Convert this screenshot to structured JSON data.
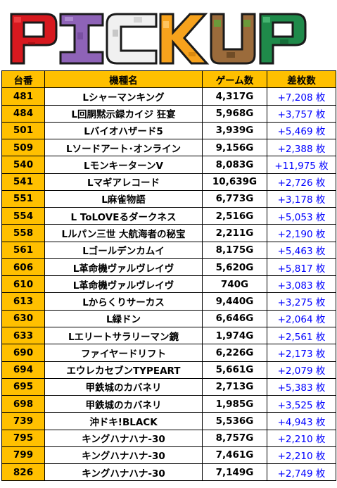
{
  "banner": {
    "title": "PICKUP",
    "letters": [
      {
        "char": "P",
        "color": "#d7191f"
      },
      {
        "char": "I",
        "color": "#8e63b7"
      },
      {
        "char": "C",
        "color": "#f0f0f0"
      },
      {
        "char": "K",
        "color": "#f7a21c"
      },
      {
        "char": "U",
        "color": "#9b6b3b"
      },
      {
        "char": "P",
        "color": "#1f8a4a"
      }
    ]
  },
  "table": {
    "headers": {
      "no": "台番",
      "model": "機種名",
      "games": "ゲーム数",
      "diff": "差枚数"
    },
    "header_color": "#ffc000",
    "diff_color": "#0000ff",
    "rows": [
      {
        "no": "481",
        "model": "Lシャーマンキング",
        "games": "4,317G",
        "diff": "+7,208 枚"
      },
      {
        "no": "484",
        "model": "L回胴黙示録カイジ 狂宴",
        "games": "5,968G",
        "diff": "+3,757 枚"
      },
      {
        "no": "501",
        "model": "Lバイオハザード5",
        "games": "3,939G",
        "diff": "+5,469 枚"
      },
      {
        "no": "509",
        "model": "Lソードアート･オンライン",
        "games": "9,156G",
        "diff": "+2,388 枚"
      },
      {
        "no": "540",
        "model": "LモンキーターンV",
        "games": "8,083G",
        "diff": "+11,975 枚"
      },
      {
        "no": "541",
        "model": "Lマギアレコード",
        "games": "10,639G",
        "diff": "+2,726 枚"
      },
      {
        "no": "551",
        "model": "L麻雀物語",
        "games": "6,773G",
        "diff": "+3,178 枚"
      },
      {
        "no": "554",
        "model": "L ToLOVEるダークネス",
        "games": "2,516G",
        "diff": "+5,053 枚"
      },
      {
        "no": "558",
        "model": "Lルパン三世 大航海者の秘宝",
        "games": "2,211G",
        "diff": "+2,190 枚"
      },
      {
        "no": "561",
        "model": "Lゴールデンカムイ",
        "games": "8,175G",
        "diff": "+5,463 枚"
      },
      {
        "no": "606",
        "model": "L革命機ヴァルヴレイヴ",
        "games": "5,620G",
        "diff": "+5,817 枚"
      },
      {
        "no": "610",
        "model": "L革命機ヴァルヴレイヴ",
        "games": "740G",
        "diff": "+3,083 枚"
      },
      {
        "no": "613",
        "model": "Lからくりサーカス",
        "games": "9,440G",
        "diff": "+3,275 枚"
      },
      {
        "no": "630",
        "model": "L緑ドン",
        "games": "6,646G",
        "diff": "+2,064 枚"
      },
      {
        "no": "633",
        "model": "Lエリートサラリーマン鏡",
        "games": "1,974G",
        "diff": "+2,561 枚"
      },
      {
        "no": "690",
        "model": "ファイヤードリフト",
        "games": "6,226G",
        "diff": "+2,173 枚"
      },
      {
        "no": "694",
        "model": "エウレカセブンTYPEART",
        "games": "5,661G",
        "diff": "+2,079 枚"
      },
      {
        "no": "695",
        "model": "甲鉄城のカバネリ",
        "games": "2,713G",
        "diff": "+5,383 枚"
      },
      {
        "no": "698",
        "model": "甲鉄城のカバネリ",
        "games": "1,985G",
        "diff": "+3,525 枚"
      },
      {
        "no": "739",
        "model": "沖ドキ!BLACK",
        "games": "5,536G",
        "diff": "+4,943 枚"
      },
      {
        "no": "795",
        "model": "キングハナハナ-30",
        "games": "8,757G",
        "diff": "+2,210 枚"
      },
      {
        "no": "799",
        "model": "キングハナハナ-30",
        "games": "7,461G",
        "diff": "+2,210 枚"
      },
      {
        "no": "826",
        "model": "キングハナハナ-30",
        "games": "7,149G",
        "diff": "+2,749 枚"
      }
    ]
  }
}
